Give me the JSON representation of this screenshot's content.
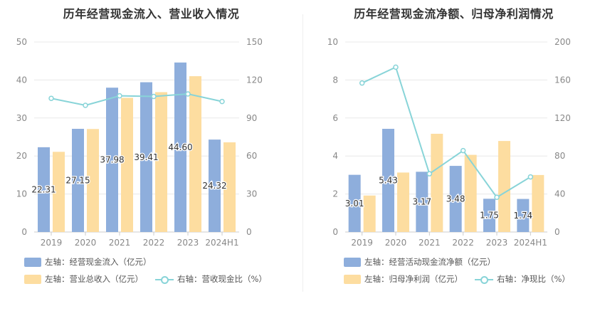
{
  "colors": {
    "bar_blue": "#8EAEDC",
    "bar_orange": "#FDDDA0",
    "line": "#88D4D8",
    "axis_text": "#888888",
    "grid": "#e8e8e8"
  },
  "chart_data": [
    {
      "type": "bar",
      "title": "历年经营现金流入、营业收入情况",
      "categories": [
        "2019",
        "2020",
        "2021",
        "2022",
        "2023",
        "2024H1"
      ],
      "left_axis": {
        "ylim": [
          0,
          50
        ],
        "ticks": [
          0,
          10,
          20,
          30,
          40,
          50
        ]
      },
      "right_axis": {
        "ylim": [
          0,
          150
        ],
        "ticks": [
          0,
          30,
          60,
          90,
          120,
          150
        ]
      },
      "series": [
        {
          "name": "左轴：经营现金流入（亿元）",
          "axis": "left",
          "kind": "bar",
          "color": "#8EAEDC",
          "values": [
            22.31,
            27.15,
            37.98,
            39.41,
            44.6,
            24.32
          ],
          "labels": [
            "22.31",
            "27.15",
            "37.98",
            "39.41",
            "44.60",
            "24.32"
          ]
        },
        {
          "name": "左轴：营业总收入（亿元）",
          "axis": "left",
          "kind": "bar",
          "color": "#FDDDA0",
          "values": [
            21.1,
            27.1,
            35.3,
            36.8,
            41.0,
            23.6
          ]
        },
        {
          "name": "右轴：营收现金比（%）",
          "axis": "right",
          "kind": "line",
          "color": "#88D4D8",
          "values": [
            105.5,
            100.0,
            107.5,
            107.0,
            109.0,
            103.0
          ]
        }
      ],
      "legend": [
        "左轴：经营现金流入（亿元）",
        "左轴：营业总收入（亿元）",
        "右轴：营收现金比（%）"
      ]
    },
    {
      "type": "bar",
      "title": "历年经营现金流净额、归母净利润情况",
      "categories": [
        "2019",
        "2020",
        "2021",
        "2022",
        "2023",
        "2024H1"
      ],
      "left_axis": {
        "ylim": [
          0,
          10
        ],
        "ticks": [
          0,
          2,
          4,
          6,
          8,
          10
        ]
      },
      "right_axis": {
        "ylim": [
          0,
          200
        ],
        "ticks": [
          0,
          40,
          80,
          120,
          160,
          200
        ]
      },
      "series": [
        {
          "name": "左轴：经营活动现金流净额（亿元）",
          "axis": "left",
          "kind": "bar",
          "color": "#8EAEDC",
          "values": [
            3.01,
            5.43,
            3.17,
            3.48,
            1.75,
            1.74
          ],
          "labels": [
            "3.01",
            "5.43",
            "3.17",
            "3.48",
            "1.75",
            "1.74"
          ]
        },
        {
          "name": "左轴：归母净利润（亿元）",
          "axis": "left",
          "kind": "bar",
          "color": "#FDDDA0",
          "values": [
            1.92,
            3.13,
            5.17,
            4.06,
            4.79,
            3.0
          ]
        },
        {
          "name": "右轴：净现比（%）",
          "axis": "right",
          "kind": "line",
          "color": "#88D4D8",
          "values": [
            156.8,
            173.5,
            61.3,
            85.7,
            36.5,
            58.0
          ]
        }
      ],
      "legend": [
        "左轴：经营活动现金流净额（亿元）",
        "左轴：归母净利润（亿元）",
        "右轴：净现比（%）"
      ]
    }
  ]
}
